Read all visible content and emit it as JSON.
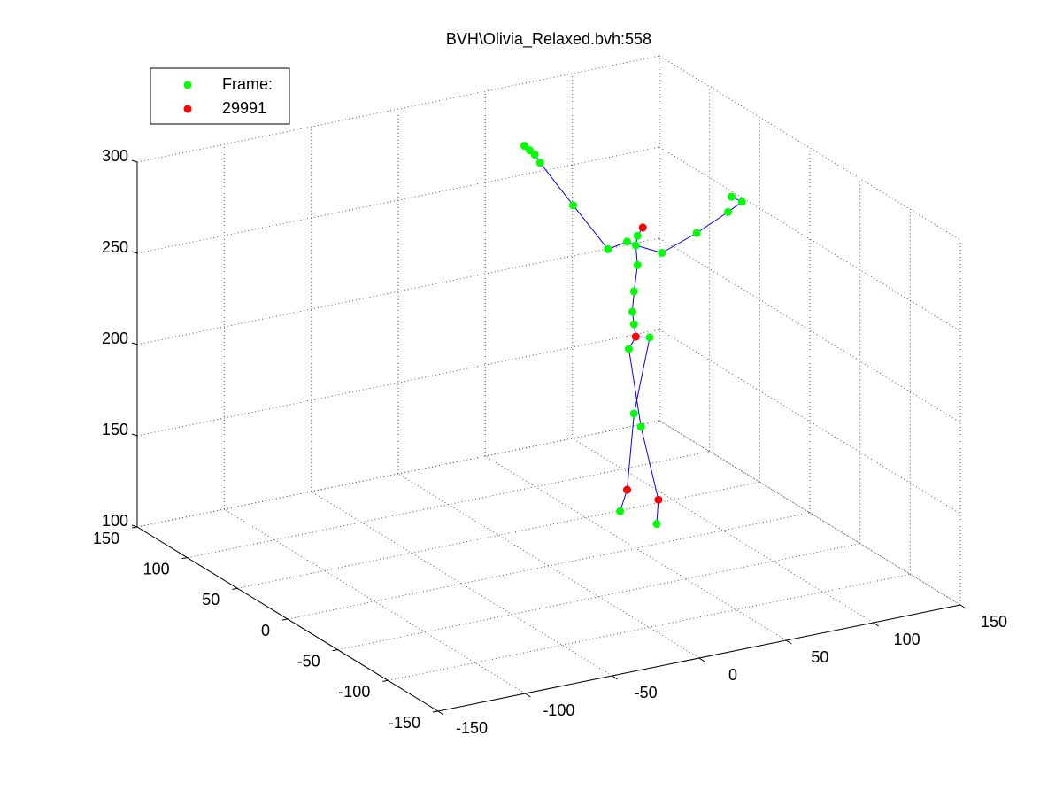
{
  "chart_data": {
    "type": "scatter3d",
    "title": "BVH\\Olivia_Relaxed.bvh:558",
    "xlim": [
      -150,
      150
    ],
    "ylim": [
      -150,
      150
    ],
    "zlim": [
      100,
      300
    ],
    "xticks": [
      -150,
      -100,
      -50,
      0,
      50,
      100,
      150
    ],
    "yticks": [
      -150,
      -100,
      -50,
      0,
      50,
      100,
      150
    ],
    "zticks": [
      100,
      150,
      200,
      250,
      300
    ],
    "grid": true,
    "legend": "northwest",
    "series": [
      {
        "name": "Frame:",
        "color": "#00ff00",
        "x": [
          -14,
          -11,
          -8,
          -5,
          14,
          34,
          45,
          50,
          51,
          65,
          85,
          103,
          111,
          105,
          51,
          49,
          48,
          49,
          46,
          58,
          49,
          53,
          41,
          62
        ],
        "y": [
          0,
          0,
          0,
          0,
          0,
          0,
          0,
          0,
          0,
          0,
          0,
          0,
          0,
          0,
          0,
          0,
          0,
          0,
          0,
          0,
          0,
          0,
          0,
          0
        ],
        "z": [
          333,
          330,
          327,
          322,
          295,
          267,
          269,
          266,
          271,
          259,
          266,
          274,
          278,
          282,
          255,
          241,
          230,
          223,
          210,
          214,
          174,
          166,
          122,
          111
        ]
      },
      {
        "name": "29991",
        "color": "#ff0000",
        "x": [
          54,
          50,
          45,
          63
        ],
        "y": [
          0,
          0,
          0,
          0
        ],
        "z": [
          275,
          216,
          133,
          124
        ]
      }
    ],
    "bones": {
      "color": "#0000ff",
      "x": [
        41,
        45,
        49,
        58,
        50,
        46,
        53,
        63,
        62,
        null,
        50,
        49,
        48,
        49,
        51,
        50,
        51,
        54,
        null,
        -14,
        -11,
        -8,
        -5,
        14,
        34,
        45,
        50,
        65,
        85,
        103,
        111,
        105
      ],
      "y": [
        0,
        0,
        0,
        0,
        0,
        0,
        0,
        0,
        0,
        null,
        0,
        0,
        0,
        0,
        0,
        0,
        0,
        0,
        null,
        0,
        0,
        0,
        0,
        0,
        0,
        0,
        0,
        0,
        0,
        0,
        0,
        0
      ],
      "z": [
        122,
        133,
        174,
        214,
        216,
        210,
        166,
        124,
        111,
        null,
        216,
        223,
        230,
        241,
        255,
        266,
        271,
        275,
        null,
        333,
        330,
        327,
        322,
        295,
        267,
        269,
        266,
        259,
        266,
        274,
        278,
        282
      ]
    }
  }
}
